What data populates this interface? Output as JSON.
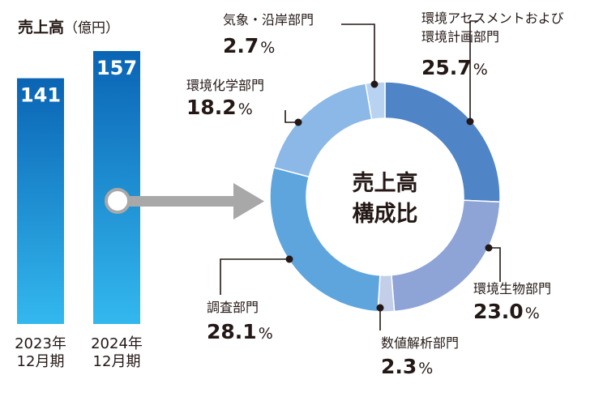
{
  "chart_data": [
    {
      "type": "bar",
      "title": "売上高",
      "unit": "（億円）",
      "categories": [
        [
          "2023年",
          "12月期"
        ],
        [
          "2024年",
          "12月期"
        ]
      ],
      "values": [
        141,
        157
      ],
      "value_labels": [
        "141",
        "157"
      ],
      "colors": {
        "bar_top": "#0a64b4",
        "bar_bottom": "#33b8ee"
      }
    },
    {
      "type": "pie",
      "style": "donut",
      "center_title": [
        "売上高",
        "構成比"
      ],
      "slices": [
        {
          "name": [
            "環境アセスメントおよび",
            "環境計画部門"
          ],
          "value": 25.7,
          "label": "25.7",
          "color": "#4f84c6"
        },
        {
          "name": [
            "環境生物部門"
          ],
          "value": 23.0,
          "label": "23.0",
          "color": "#8ea4d6"
        },
        {
          "name": [
            "数値解析部門"
          ],
          "value": 2.3,
          "label": "2.3",
          "color": "#c3cfe9"
        },
        {
          "name": [
            "調査部門"
          ],
          "value": 28.1,
          "label": "28.1",
          "color": "#5ea5dd"
        },
        {
          "name": [
            "環境化学部門"
          ],
          "value": 18.2,
          "label": "18.2",
          "color": "#8bb8e6"
        },
        {
          "name": [
            "気象・沿岸部門"
          ],
          "value": 2.7,
          "label": "2.7",
          "color": "#b7d3f1"
        }
      ],
      "percent_sign": "%",
      "colors": {
        "arrow": "#a8a8a8",
        "leader": "#231815"
      }
    }
  ]
}
